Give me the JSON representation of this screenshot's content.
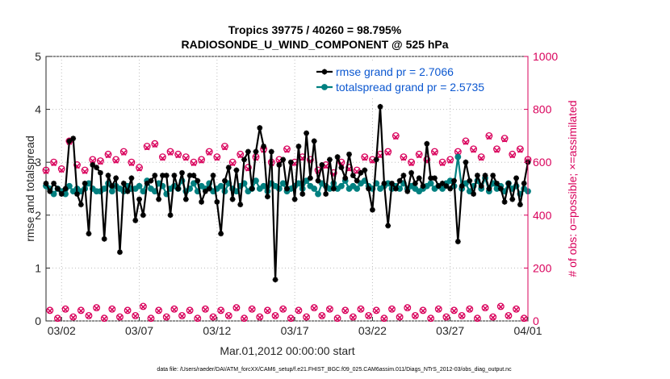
{
  "chart_data": {
    "type": "line",
    "title_line1": "Tropics 39775 / 40260 = 98.795%",
    "title_line2": "RADIOSONDE_U_WIND_COMPONENT @ 525 hPa",
    "xlabel": "Mar.01,2012 00:00:00 start",
    "ylabel_left": "rmse and totalspread",
    "ylabel_right": "# of obs: o=possible; ×=assimilated",
    "xlim": [
      0,
      31
    ],
    "ylim_left": [
      0,
      5
    ],
    "ylim_right": [
      0,
      1000
    ],
    "x_ticks": [
      1,
      6,
      11,
      16,
      21,
      26,
      31
    ],
    "x_tick_labels": [
      "03/02",
      "03/07",
      "03/12",
      "03/17",
      "03/22",
      "03/27",
      "04/01"
    ],
    "y_ticks_left": [
      0,
      1,
      2,
      3,
      4,
      5
    ],
    "y_tick_labels_left": [
      "0",
      "1",
      "2",
      "3",
      "4",
      "5"
    ],
    "y_ticks_right": [
      0,
      200,
      400,
      600,
      800,
      1000
    ],
    "y_tick_labels_right": [
      "0",
      "200",
      "400",
      "600",
      "800",
      "1000"
    ],
    "series": [
      {
        "name": "rmse grand pr = 2.7066",
        "color": "#000000",
        "marker": "asterisk",
        "axis": "left",
        "x": [
          0.0,
          0.25,
          0.5,
          0.75,
          1.0,
          1.25,
          1.5,
          1.75,
          2.0,
          2.25,
          2.5,
          2.75,
          3.0,
          3.25,
          3.5,
          3.75,
          4.0,
          4.25,
          4.5,
          4.75,
          5.0,
          5.25,
          5.5,
          5.75,
          6.0,
          6.25,
          6.5,
          6.75,
          7.0,
          7.25,
          7.5,
          7.75,
          8.0,
          8.25,
          8.5,
          8.75,
          9.0,
          9.25,
          9.5,
          9.75,
          10.0,
          10.25,
          10.5,
          10.75,
          11.0,
          11.25,
          11.5,
          11.75,
          12.0,
          12.25,
          12.5,
          12.75,
          13.0,
          13.25,
          13.5,
          13.75,
          14.0,
          14.25,
          14.5,
          14.75,
          15.0,
          15.25,
          15.5,
          15.75,
          16.0,
          16.25,
          16.5,
          16.75,
          17.0,
          17.25,
          17.5,
          17.75,
          18.0,
          18.25,
          18.5,
          18.75,
          19.0,
          19.25,
          19.5,
          19.75,
          20.0,
          20.25,
          20.5,
          20.75,
          21.0,
          21.25,
          21.5,
          21.75,
          22.0,
          22.25,
          22.5,
          22.75,
          23.0,
          23.25,
          23.5,
          23.75,
          24.0,
          24.25,
          24.5,
          24.75,
          25.0,
          25.25,
          25.5,
          25.75,
          26.0,
          26.25,
          26.5,
          26.75,
          27.0,
          27.25,
          27.5,
          27.75,
          28.0,
          28.25,
          28.5,
          28.75,
          29.0,
          29.25,
          29.5,
          29.75,
          30.0,
          30.25,
          30.5,
          30.75,
          31.0
        ],
        "y": [
          2.6,
          2.45,
          2.6,
          2.5,
          2.4,
          2.5,
          3.4,
          3.45,
          2.4,
          2.2,
          2.6,
          1.65,
          2.95,
          2.9,
          2.8,
          1.55,
          2.75,
          2.55,
          2.7,
          1.3,
          2.6,
          2.45,
          2.7,
          1.9,
          2.3,
          2.0,
          2.6,
          2.65,
          2.75,
          2.3,
          2.75,
          2.75,
          2.0,
          2.75,
          2.5,
          2.8,
          2.3,
          2.75,
          2.75,
          2.65,
          2.25,
          2.45,
          2.5,
          2.75,
          2.25,
          1.65,
          2.65,
          2.9,
          2.3,
          2.85,
          2.2,
          3.05,
          3.2,
          2.5,
          3.2,
          3.65,
          3.3,
          2.35,
          3.2,
          0.78,
          2.95,
          3.05,
          2.5,
          3.0,
          2.3,
          3.3,
          2.4,
          3.55,
          2.7,
          3.4,
          2.65,
          2.95,
          2.4,
          3.05,
          2.5,
          3.1,
          2.9,
          2.7,
          3.15,
          2.75,
          2.65,
          2.8,
          2.85,
          2.5,
          2.1,
          3.05,
          4.05,
          2.6,
          1.8,
          2.6,
          2.5,
          2.65,
          2.75,
          2.45,
          2.8,
          2.6,
          2.7,
          2.55,
          3.35,
          2.7,
          2.7,
          2.55,
          2.6,
          2.55,
          2.5,
          2.65,
          1.5,
          2.55,
          3.0,
          2.65,
          2.4,
          2.75,
          2.55,
          2.75,
          2.5,
          2.75,
          2.6,
          2.5,
          2.25,
          2.6,
          2.3,
          2.7,
          2.2,
          2.6,
          3.0
        ]
      },
      {
        "name": "totalspread grand pr = 2.5735",
        "color": "#008080",
        "marker": "circle",
        "axis": "left",
        "x": [
          0.0,
          0.25,
          0.5,
          0.75,
          1.0,
          1.25,
          1.5,
          1.75,
          2.0,
          2.25,
          2.5,
          2.75,
          3.0,
          3.25,
          3.5,
          3.75,
          4.0,
          4.25,
          4.5,
          4.75,
          5.0,
          5.25,
          5.5,
          5.75,
          6.0,
          6.25,
          6.5,
          6.75,
          7.0,
          7.25,
          7.5,
          7.75,
          8.0,
          8.25,
          8.5,
          8.75,
          9.0,
          9.25,
          9.5,
          9.75,
          10.0,
          10.25,
          10.5,
          10.75,
          11.0,
          11.25,
          11.5,
          11.75,
          12.0,
          12.25,
          12.5,
          12.75,
          13.0,
          13.25,
          13.5,
          13.75,
          14.0,
          14.25,
          14.5,
          14.75,
          15.0,
          15.25,
          15.5,
          15.75,
          16.0,
          16.25,
          16.5,
          16.75,
          17.0,
          17.25,
          17.5,
          17.75,
          18.0,
          18.25,
          18.5,
          18.75,
          19.0,
          19.25,
          19.5,
          19.75,
          20.0,
          20.25,
          20.5,
          20.75,
          21.0,
          21.25,
          21.5,
          21.75,
          22.0,
          22.25,
          22.5,
          22.75,
          23.0,
          23.25,
          23.5,
          23.75,
          24.0,
          24.25,
          24.5,
          24.75,
          25.0,
          25.25,
          25.5,
          25.75,
          26.0,
          26.25,
          26.5,
          26.75,
          27.0,
          27.25,
          27.5,
          27.75,
          28.0,
          28.25,
          28.5,
          28.75,
          29.0,
          29.25,
          29.5,
          29.75,
          30.0,
          30.25,
          30.5,
          30.75,
          31.0
        ],
        "y": [
          2.55,
          2.5,
          2.4,
          2.5,
          2.45,
          2.4,
          2.55,
          2.45,
          2.5,
          2.45,
          2.5,
          2.6,
          2.5,
          2.45,
          2.45,
          2.5,
          2.6,
          2.45,
          2.55,
          2.5,
          2.45,
          2.55,
          2.5,
          2.5,
          2.55,
          2.45,
          2.65,
          2.5,
          2.45,
          2.6,
          2.55,
          2.4,
          2.5,
          2.55,
          2.5,
          2.65,
          2.45,
          2.5,
          2.6,
          2.45,
          2.55,
          2.5,
          2.6,
          2.45,
          2.5,
          2.55,
          2.45,
          2.6,
          2.5,
          2.45,
          2.55,
          2.6,
          2.45,
          2.5,
          2.65,
          2.5,
          2.55,
          2.45,
          2.6,
          2.55,
          2.5,
          2.6,
          2.45,
          2.5,
          2.55,
          2.6,
          2.5,
          2.65,
          2.55,
          2.5,
          2.4,
          2.6,
          2.55,
          2.5,
          2.6,
          2.5,
          2.55,
          2.65,
          2.5,
          2.55,
          2.5,
          2.6,
          2.65,
          2.55,
          2.5,
          2.6,
          2.5,
          2.55,
          2.6,
          2.5,
          2.55,
          2.5,
          2.6,
          2.5,
          2.55,
          2.5,
          2.45,
          2.5,
          2.55,
          2.6,
          2.5,
          2.55,
          2.5,
          2.6,
          2.65,
          2.55,
          3.1,
          2.5,
          2.6,
          2.45,
          2.55,
          2.65,
          2.5,
          2.7,
          2.45,
          2.6,
          2.5,
          2.55,
          2.45,
          2.6,
          2.5,
          2.55,
          2.4,
          2.5,
          2.45
        ]
      },
      {
        "name": "possible",
        "color": "#d9005b",
        "marker": "circle-open",
        "axis": "right",
        "x": [
          0.0,
          0.5,
          1.0,
          1.5,
          2.0,
          2.5,
          3.0,
          3.5,
          4.0,
          4.5,
          5.0,
          5.5,
          6.0,
          6.5,
          7.0,
          7.5,
          8.0,
          8.5,
          9.0,
          9.5,
          10.0,
          10.5,
          11.0,
          11.5,
          12.0,
          12.5,
          13.0,
          13.5,
          14.0,
          14.5,
          15.0,
          15.5,
          16.0,
          16.5,
          17.0,
          17.5,
          18.0,
          18.5,
          19.0,
          19.5,
          20.0,
          20.5,
          21.0,
          21.5,
          22.0,
          22.5,
          23.0,
          23.5,
          24.0,
          24.5,
          25.0,
          25.5,
          26.0,
          26.5,
          27.0,
          27.5,
          28.0,
          28.5,
          29.0,
          29.5,
          30.0,
          30.5,
          31.0,
          0.25,
          0.75,
          1.25,
          1.75,
          2.25,
          2.75,
          3.25,
          3.75,
          4.25,
          4.75,
          5.25,
          5.75,
          6.25,
          6.75,
          7.25,
          7.75,
          8.25,
          8.75,
          9.25,
          9.75,
          10.25,
          10.75,
          11.25,
          11.75,
          12.25,
          12.75,
          13.25,
          13.75,
          14.25,
          14.75,
          15.25,
          15.75,
          16.25,
          16.75,
          17.25,
          17.75,
          18.25,
          18.75,
          19.25,
          19.75,
          20.25,
          20.75,
          21.25,
          21.75,
          22.25,
          22.75,
          23.25,
          23.75,
          24.25,
          24.75,
          25.25,
          25.75,
          26.25,
          26.75,
          27.25,
          27.75,
          28.25,
          28.75,
          29.25,
          29.75,
          30.25,
          30.75
        ],
        "y": [
          570,
          600,
          575,
          680,
          590,
          570,
          610,
          605,
          630,
          610,
          640,
          600,
          580,
          660,
          670,
          620,
          640,
          630,
          620,
          600,
          610,
          640,
          620,
          660,
          600,
          630,
          580,
          620,
          650,
          600,
          610,
          650,
          600,
          620,
          610,
          570,
          590,
          560,
          600,
          580,
          570,
          620,
          610,
          630,
          640,
          700,
          620,
          600,
          630,
          610,
          640,
          600,
          610,
          640,
          680,
          650,
          620,
          700,
          650,
          690,
          630,
          650,
          610,
          40,
          10,
          45,
          15,
          40,
          20,
          50,
          10,
          45,
          15,
          40,
          20,
          55,
          10,
          40,
          15,
          45,
          20,
          40,
          10,
          45,
          15,
          40,
          20,
          50,
          10,
          45,
          15,
          40,
          20,
          45,
          10,
          40,
          15,
          50,
          20,
          45,
          10,
          40,
          15,
          45,
          20,
          40,
          10,
          45,
          15,
          50,
          20,
          40,
          10,
          45,
          15,
          40,
          20,
          45,
          10,
          50,
          15,
          55,
          20,
          45,
          10
        ]
      },
      {
        "name": "assimilated",
        "color": "#d9005b",
        "marker": "cross",
        "axis": "right",
        "x": [
          0.0,
          0.5,
          1.0,
          1.5,
          2.0,
          2.5,
          3.0,
          3.5,
          4.0,
          4.5,
          5.0,
          5.5,
          6.0,
          6.5,
          7.0,
          7.5,
          8.0,
          8.5,
          9.0,
          9.5,
          10.0,
          10.5,
          11.0,
          11.5,
          12.0,
          12.5,
          13.0,
          13.5,
          14.0,
          14.5,
          15.0,
          15.5,
          16.0,
          16.5,
          17.0,
          17.5,
          18.0,
          18.5,
          19.0,
          19.5,
          20.0,
          20.5,
          21.0,
          21.5,
          22.0,
          22.5,
          23.0,
          23.5,
          24.0,
          24.5,
          25.0,
          25.5,
          26.0,
          26.5,
          27.0,
          27.5,
          28.0,
          28.5,
          29.0,
          29.5,
          30.0,
          30.5,
          31.0,
          0.25,
          0.75,
          1.25,
          1.75,
          2.25,
          2.75,
          3.25,
          3.75,
          4.25,
          4.75,
          5.25,
          5.75,
          6.25,
          6.75,
          7.25,
          7.75,
          8.25,
          8.75,
          9.25,
          9.75,
          10.25,
          10.75,
          11.25,
          11.75,
          12.25,
          12.75,
          13.25,
          13.75,
          14.25,
          14.75,
          15.25,
          15.75,
          16.25,
          16.75,
          17.25,
          17.75,
          18.25,
          18.75,
          19.25,
          19.75,
          20.25,
          20.75,
          21.25,
          21.75,
          22.25,
          22.75,
          23.25,
          23.75,
          24.25,
          24.75,
          25.25,
          25.75,
          26.25,
          26.75,
          27.25,
          27.75,
          28.25,
          28.75,
          29.25,
          29.75,
          30.25,
          30.75
        ],
        "y": [
          565,
          595,
          570,
          675,
          585,
          565,
          605,
          600,
          625,
          605,
          635,
          595,
          575,
          655,
          665,
          615,
          635,
          625,
          615,
          595,
          605,
          635,
          615,
          655,
          595,
          625,
          575,
          615,
          645,
          595,
          605,
          645,
          595,
          615,
          605,
          565,
          585,
          555,
          595,
          575,
          565,
          615,
          605,
          625,
          635,
          695,
          615,
          595,
          625,
          605,
          635,
          595,
          605,
          635,
          675,
          645,
          615,
          695,
          645,
          685,
          625,
          645,
          605,
          38,
          8,
          43,
          13,
          38,
          18,
          48,
          8,
          43,
          13,
          38,
          18,
          53,
          8,
          38,
          13,
          43,
          18,
          38,
          8,
          43,
          13,
          38,
          18,
          48,
          8,
          43,
          13,
          38,
          18,
          43,
          8,
          38,
          13,
          48,
          18,
          43,
          8,
          38,
          13,
          43,
          18,
          38,
          8,
          43,
          13,
          48,
          18,
          38,
          8,
          43,
          13,
          38,
          18,
          43,
          8,
          48,
          13,
          53,
          18,
          43,
          8
        ]
      }
    ],
    "legend": [
      {
        "label": "rmse grand pr = 2.7066",
        "color": "#000000",
        "marker": "asterisk"
      },
      {
        "label": "totalspread grand pr = 2.5735",
        "color": "#008080",
        "marker": "circle"
      }
    ],
    "legend_position": "top-right",
    "footer": "data file: /Users/raeder/DAI/ATM_forcXX/CAM6_setup/f.e21.FHIST_BGC.f09_025.CAM6assim.011/Diags_NTrS_2012-03/obs_diag_output.nc",
    "left_axis_color": "#000000",
    "right_axis_color": "#d9005b",
    "legend_text_color": "#0b57d0"
  }
}
